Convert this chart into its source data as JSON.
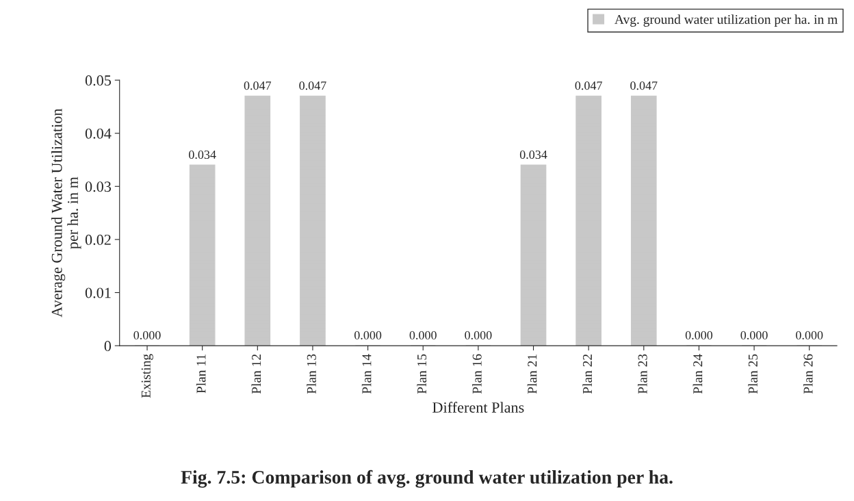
{
  "chart_data": {
    "type": "bar",
    "title": "Fig. 7.5: Comparison of avg. ground water utilization per ha.",
    "xlabel": "Different Plans",
    "ylabel": "Average Ground Water Utilization\nper ha. in m",
    "categories": [
      "Existing",
      "Plan 11",
      "Plan 12",
      "Plan 13",
      "Plan 14",
      "Plan 15",
      "Plan 16",
      "Plan 21",
      "Plan 22",
      "Plan 23",
      "Plan 24",
      "Plan 25",
      "Plan 26"
    ],
    "series": [
      {
        "name": "Avg. ground water utilization per ha. in m",
        "color": "#c8c8c8",
        "values": [
          0,
          0.034,
          0.047,
          0.047,
          0,
          0,
          0,
          0.034,
          0.047,
          0.047,
          0,
          0,
          0
        ],
        "value_labels": [
          "0.000",
          "0.034",
          "0.047",
          "0.047",
          "0.000",
          "0.000",
          "0.000",
          "0.034",
          "0.047",
          "0.047",
          "0.000",
          "0.000",
          "0.000"
        ]
      }
    ],
    "ylim": [
      0,
      0.05
    ],
    "yticks": [
      0,
      0.01,
      0.02,
      0.03,
      0.04,
      0.05
    ],
    "grid": false,
    "legend": "top right"
  }
}
